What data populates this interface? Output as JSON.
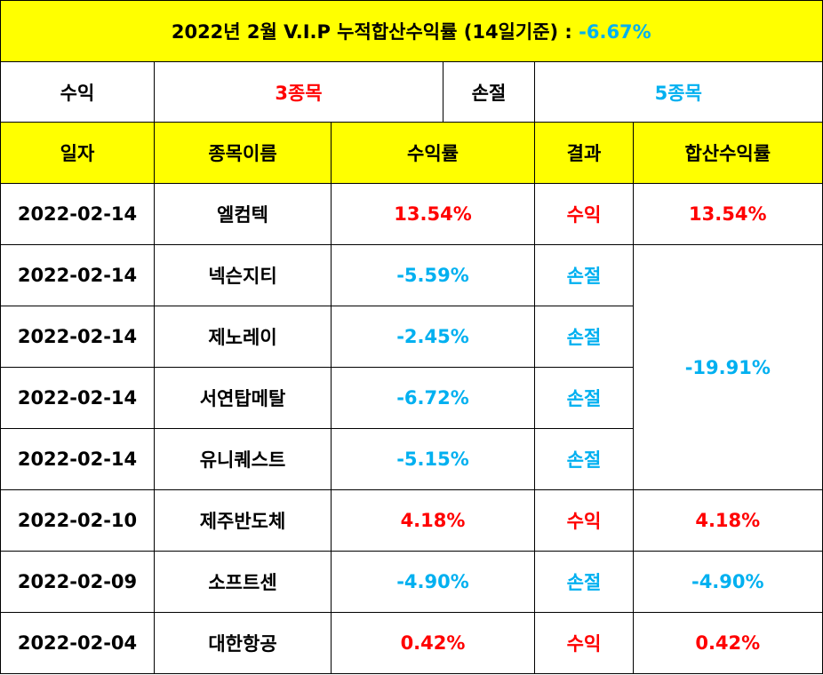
{
  "title": {
    "text": "2022년 2월 V.I.P 누적합산수익률 (14일기준) :",
    "value": "-6.67%",
    "value_color": "#00b0f0"
  },
  "summary": {
    "gain_label": "수익",
    "gain_count": "3종목",
    "loss_label": "손절",
    "loss_count": "5종목"
  },
  "headers": {
    "date": "일자",
    "name": "종목이름",
    "rate": "수익률",
    "result": "결과",
    "total": "합산수익률"
  },
  "colors": {
    "header_bg": "#ffff00",
    "gain": "#ff0000",
    "loss": "#00b0f0"
  },
  "rows": [
    {
      "date": "2022-02-14",
      "name": "엘컴텍",
      "rate": "13.54%",
      "result": "수익"
    },
    {
      "date": "2022-02-14",
      "name": "넥슨지티",
      "rate": "-5.59%",
      "result": "손절"
    },
    {
      "date": "2022-02-14",
      "name": "제노레이",
      "rate": "-2.45%",
      "result": "손절"
    },
    {
      "date": "2022-02-14",
      "name": "서연탑메탈",
      "rate": "-6.72%",
      "result": "손절"
    },
    {
      "date": "2022-02-14",
      "name": "유니퀘스트",
      "rate": "-5.15%",
      "result": "손절"
    },
    {
      "date": "2022-02-10",
      "name": "제주반도체",
      "rate": "4.18%",
      "result": "수익"
    },
    {
      "date": "2022-02-09",
      "name": "소프트센",
      "rate": "-4.90%",
      "result": "손절"
    },
    {
      "date": "2022-02-04",
      "name": "대한항공",
      "rate": "0.42%",
      "result": "수익"
    }
  ],
  "totals": [
    "13.54%",
    "-19.91%",
    "4.18%",
    "-4.90%",
    "0.42%"
  ]
}
